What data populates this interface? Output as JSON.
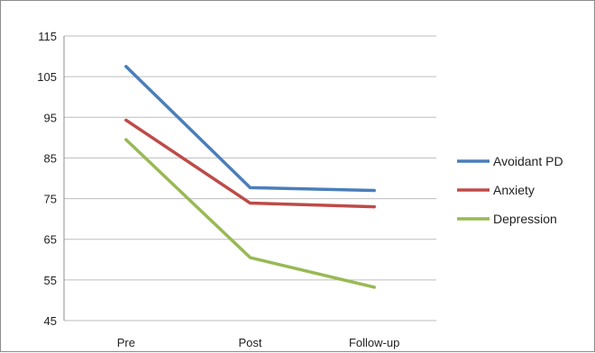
{
  "chart_data": {
    "type": "line",
    "categories": [
      "Pre",
      "Post",
      "Follow-up"
    ],
    "ylim": [
      45,
      115
    ],
    "yticks": [
      45,
      55,
      65,
      75,
      85,
      95,
      105,
      115
    ],
    "grid": true,
    "legend_position": "right",
    "series": [
      {
        "name": "Avoidant PD",
        "color": "#4a7ebb",
        "values": [
          107.5,
          77.7,
          77.0
        ]
      },
      {
        "name": "Anxiety",
        "color": "#be4b48",
        "values": [
          94.3,
          73.9,
          73.0
        ]
      },
      {
        "name": "Depression",
        "color": "#98b954",
        "values": [
          89.5,
          60.5,
          53.2
        ]
      }
    ]
  }
}
